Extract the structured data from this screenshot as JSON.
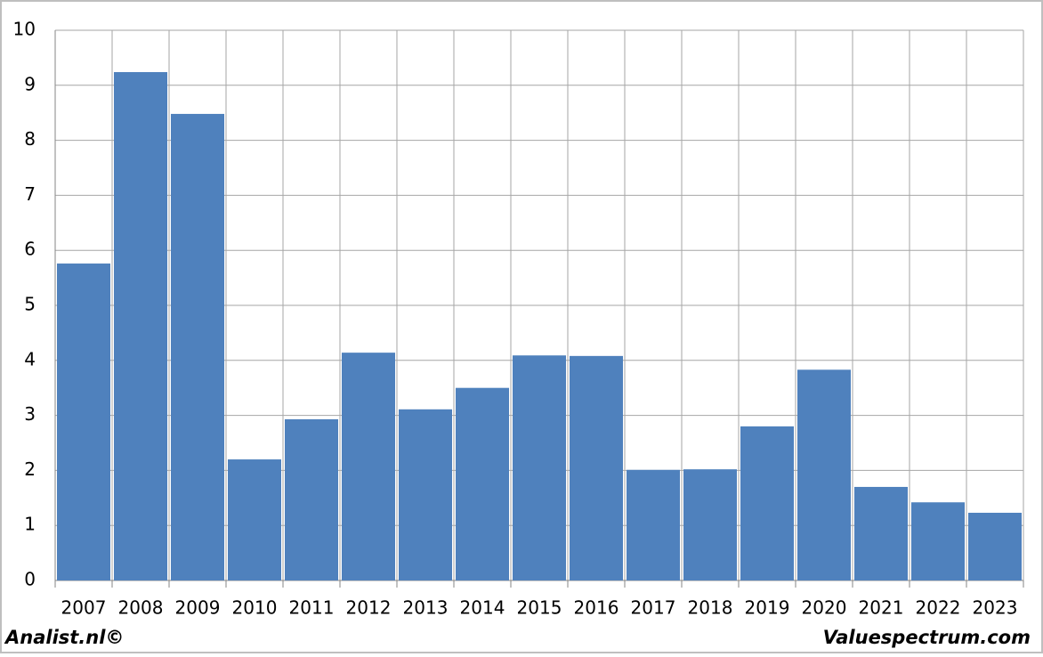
{
  "chart_data": {
    "type": "bar",
    "categories": [
      "2007",
      "2008",
      "2009",
      "2010",
      "2011",
      "2012",
      "2013",
      "2014",
      "2015",
      "2016",
      "2017",
      "2018",
      "2019",
      "2020",
      "2021",
      "2022",
      "2023"
    ],
    "values": [
      5.76,
      9.24,
      8.48,
      2.2,
      2.93,
      4.14,
      3.11,
      3.5,
      4.09,
      4.08,
      2.01,
      2.02,
      2.8,
      3.83,
      1.7,
      1.42,
      1.23
    ],
    "color": "#4f81bd",
    "ylim": [
      0,
      10
    ],
    "yticks": [
      0,
      1,
      2,
      3,
      4,
      5,
      6,
      7,
      8,
      9,
      10
    ],
    "grid": true
  },
  "footer": {
    "left": "Analist.nl©",
    "right": "Valuespectrum.com"
  }
}
